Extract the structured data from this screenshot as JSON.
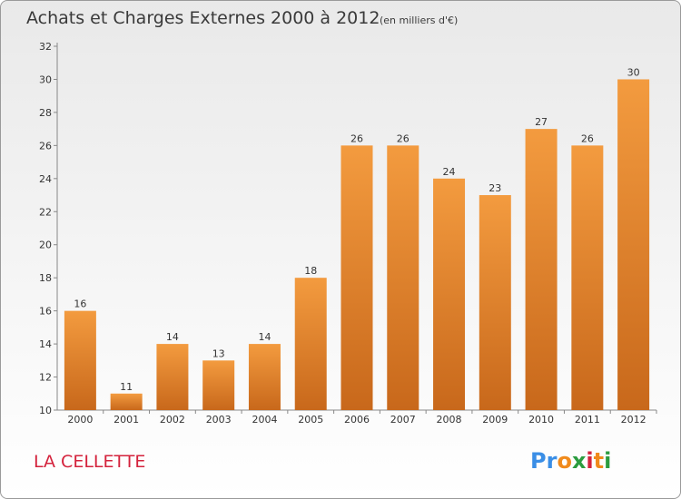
{
  "chart_data": {
    "type": "bar",
    "title": "Achats et Charges Externes 2000 à 2012",
    "subtitle": "(en milliers d'€)",
    "categories": [
      "2000",
      "2001",
      "2002",
      "2003",
      "2004",
      "2005",
      "2006",
      "2007",
      "2008",
      "2009",
      "2010",
      "2011",
      "2012"
    ],
    "values": [
      16,
      11,
      14,
      13,
      14,
      18,
      26,
      26,
      24,
      23,
      27,
      26,
      30
    ],
    "ylim": [
      10,
      32
    ],
    "yticks": [
      10,
      12,
      14,
      16,
      18,
      20,
      22,
      24,
      26,
      28,
      30,
      32
    ],
    "grid": false,
    "bar_color": "#f39b3f",
    "bar_color_dark": "#c8681b"
  },
  "footer": {
    "commune": "LA CELLETTE",
    "logo_letters": [
      "P",
      "r",
      "o",
      "x",
      "i",
      "t",
      "i"
    ],
    "logo_colors": [
      "#3a8ee6",
      "#3a8ee6",
      "#f08a1c",
      "#2c9c3f",
      "#d4223c",
      "#f08a1c",
      "#2c9c3f"
    ]
  }
}
